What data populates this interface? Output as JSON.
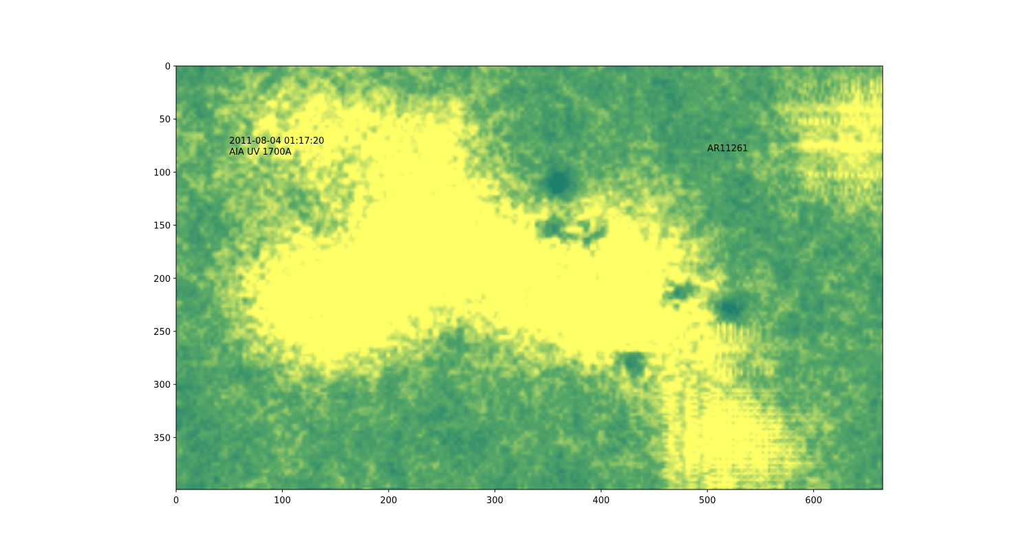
{
  "chart_data": {
    "type": "heatmap",
    "title": "",
    "xlabel": "",
    "ylabel": "",
    "xlim": [
      0,
      665
    ],
    "ylim": [
      399,
      0
    ],
    "y_inverted": true,
    "x_ticks": [
      0,
      100,
      200,
      300,
      400,
      500,
      600
    ],
    "y_ticks": [
      0,
      50,
      100,
      150,
      200,
      250,
      300,
      350
    ],
    "colormap": "yellow-green (sdoaia1700-like, low = teal green, high = pale yellow)",
    "colors": {
      "low": "#1d7f6e",
      "mid": "#59a967",
      "high": "#ffff66"
    },
    "annotations": [
      {
        "lines": [
          "2011-08-04 01:17:20",
          "AIA UV 1700A"
        ],
        "x": 50,
        "y": 75
      },
      {
        "lines": [
          "AR11261"
        ],
        "x": 500,
        "y": 77
      }
    ],
    "image_description_features": {
      "bright_plage_regions": [
        {
          "x": 120,
          "y": 215
        },
        {
          "x": 160,
          "y": 240
        },
        {
          "x": 220,
          "y": 180
        },
        {
          "x": 260,
          "y": 170
        },
        {
          "x": 330,
          "y": 200
        },
        {
          "x": 390,
          "y": 230
        },
        {
          "x": 420,
          "y": 170
        },
        {
          "x": 470,
          "y": 250
        },
        {
          "x": 230,
          "y": 80
        },
        {
          "x": 110,
          "y": 60
        },
        {
          "x": 520,
          "y": 360
        },
        {
          "x": 640,
          "y": 70
        }
      ],
      "dark_sunspot_regions": [
        {
          "x": 355,
          "y": 155
        },
        {
          "x": 470,
          "y": 215
        },
        {
          "x": 520,
          "y": 230
        },
        {
          "x": 430,
          "y": 280
        },
        {
          "x": 360,
          "y": 110
        },
        {
          "x": 390,
          "y": 160
        }
      ]
    }
  }
}
